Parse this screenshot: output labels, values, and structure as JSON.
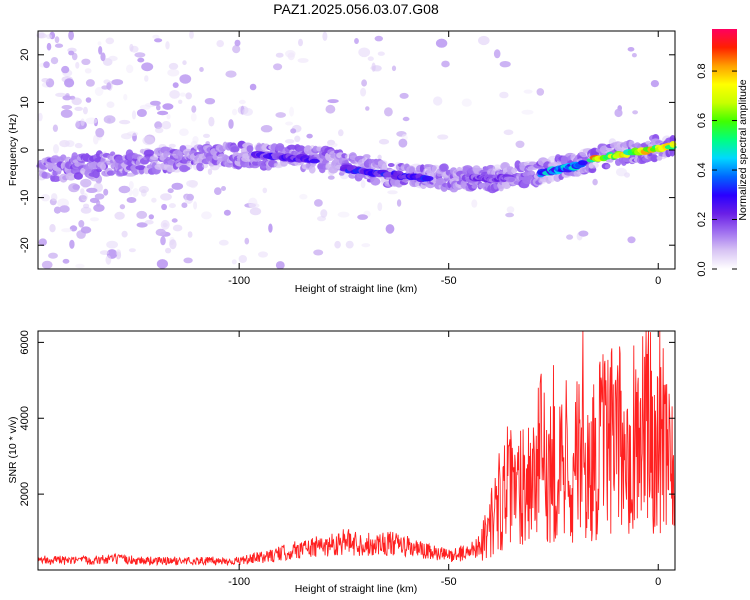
{
  "title": "PAZ1.2025.056.03.07.G08",
  "chart_data": [
    {
      "type": "heatmap",
      "xlabel": "Height of straight line (km)",
      "ylabel": "Frequency (Hz)",
      "xlim": [
        -148,
        4
      ],
      "ylim": [
        -25,
        25
      ],
      "xticks": [
        -100,
        -50,
        0
      ],
      "yticks": [
        -20,
        -10,
        0,
        10,
        20
      ],
      "colorbar": {
        "label": "Normalized spectral amplitude",
        "range": [
          0,
          0.97
        ],
        "ticks": [
          "0.0",
          "0.2",
          "0.4",
          "0.6",
          "0.8"
        ],
        "colormap": [
          "#ffffff",
          "#d8c4f4",
          "#a070f0",
          "#6a1fe6",
          "#2a00ff",
          "#0066ff",
          "#00d8ff",
          "#00ff80",
          "#40ff00",
          "#c8ff00",
          "#ffff00",
          "#ffa000",
          "#ff2000",
          "#ff0060"
        ]
      },
      "ridge": [
        {
          "x": -146,
          "y": -4
        },
        {
          "x": -100,
          "y": -1
        },
        {
          "x": -80,
          "y": -2
        },
        {
          "x": -65,
          "y": -5
        },
        {
          "x": -50,
          "y": -6
        },
        {
          "x": -40,
          "y": -6
        },
        {
          "x": -30,
          "y": -5
        },
        {
          "x": -20,
          "y": -3
        },
        {
          "x": -10,
          "y": -1
        },
        {
          "x": 4,
          "y": 1
        }
      ],
      "strong_segments": [
        {
          "x0": -16,
          "x1": 4,
          "y0": -2,
          "y1": 1,
          "amp": 0.9
        },
        {
          "x0": -28,
          "x1": -18,
          "y0": -5,
          "y1": -3,
          "amp": 0.5
        },
        {
          "x0": -75,
          "x1": -55,
          "y0": -4,
          "y1": -6,
          "amp": 0.35
        },
        {
          "x0": -96,
          "x1": -82,
          "y0": -1,
          "y1": -2,
          "amp": 0.3
        },
        {
          "x0": -45,
          "x1": -35,
          "y0": -6,
          "y1": -6,
          "amp": 0.25
        }
      ]
    },
    {
      "type": "line",
      "xlabel": "Height of straight line (km)",
      "ylabel": "SNR (10 * v/v)",
      "xlim": [
        -148,
        4
      ],
      "ylim": [
        0,
        6300
      ],
      "xticks": [
        -100,
        -50,
        0
      ],
      "yticks": [
        2000,
        4000,
        6000
      ],
      "color": "#ff2020",
      "series": [
        {
          "x": [
            -148,
            -140,
            -130,
            -120,
            -110,
            -100,
            -92,
            -85,
            -80,
            -75,
            -70,
            -65,
            -60,
            -55,
            -50,
            -45,
            -42,
            -40,
            -38,
            -36,
            -34,
            -32,
            -30,
            -28,
            -26,
            -24,
            -22,
            -20,
            -19,
            -18,
            -17,
            -16,
            -15,
            -14,
            -12,
            -10,
            -8,
            -6,
            -4,
            -2,
            0,
            2,
            3,
            4
          ],
          "y": [
            300,
            250,
            300,
            250,
            250,
            250,
            400,
            600,
            650,
            800,
            700,
            750,
            650,
            500,
            400,
            500,
            800,
            1200,
            1800,
            2200,
            2000,
            2500,
            2400,
            3000,
            2600,
            2800,
            2500,
            2800,
            3000,
            2700,
            2400,
            2800,
            3000,
            3200,
            3400,
            3300,
            3500,
            3600,
            3800,
            3700,
            3600,
            4000,
            3500,
            2400
          ],
          "peaks": [
            {
              "x": -30,
              "y": 3200
            },
            {
              "x": -25,
              "y": 5400
            },
            {
              "x": -22,
              "y": 5000
            },
            {
              "x": -18,
              "y": 6300
            },
            {
              "x": -15,
              "y": 4000
            },
            {
              "x": -10,
              "y": 4500
            },
            {
              "x": 2,
              "y": 4900
            }
          ]
        }
      ]
    }
  ]
}
